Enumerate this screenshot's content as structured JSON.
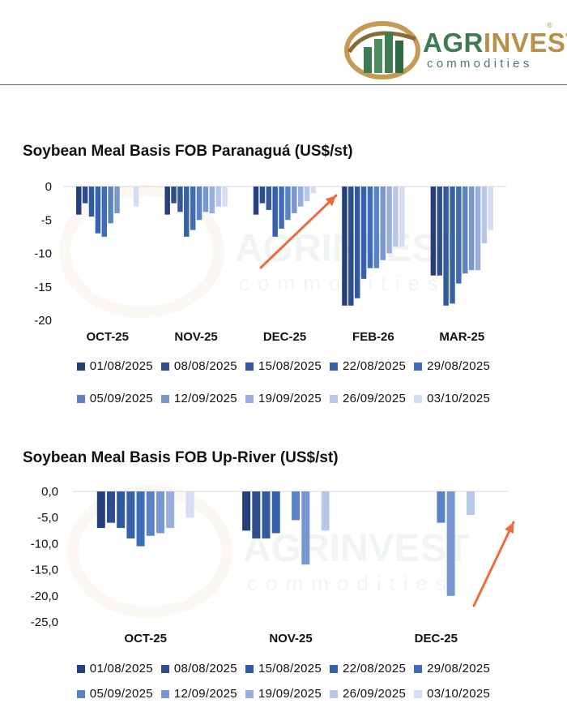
{
  "brand": {
    "name_part1": "AGR",
    "name_part2": "INVEST",
    "subtitle": "commodities",
    "registered": "®"
  },
  "colors": {
    "series": [
      "#243f7c",
      "#2c4e8e",
      "#32599f",
      "#3762ab",
      "#3f6cb8",
      "#5a83c5",
      "#7896d0",
      "#98aede",
      "#b8c7e9",
      "#d4ddf2"
    ],
    "arrow": "#ea6c3f",
    "grid": "#d9d9d9"
  },
  "series_names": [
    "01/08/2025",
    "08/08/2025",
    "15/08/2025",
    "22/08/2025",
    "29/08/2025",
    "05/09/2025",
    "12/09/2025",
    "19/09/2025",
    "26/09/2025",
    "03/10/2025"
  ],
  "chart_data": [
    {
      "type": "bar",
      "title": "Soybean Meal Basis FOB Paranaguá (US$/st)",
      "xlabel": "",
      "ylabel": "",
      "ylim": [
        -20,
        0
      ],
      "yticks": [
        "0",
        "-5",
        "-10",
        "-15",
        "-20"
      ],
      "categories": [
        "OCT-25",
        "NOV-25",
        "DEC-25",
        "FEB-26",
        "MAR-25"
      ],
      "grid": false,
      "legend": "bottom",
      "series": [
        {
          "name": "01/08/2025",
          "values": [
            -4.2,
            -4.2,
            -4.2,
            -17.8,
            -13.3
          ]
        },
        {
          "name": "08/08/2025",
          "values": [
            -2.5,
            -2.5,
            -2.5,
            -17.8,
            -13.3
          ]
        },
        {
          "name": "15/08/2025",
          "values": [
            -4.5,
            -3.8,
            -3.5,
            -16.7,
            -17.8
          ]
        },
        {
          "name": "22/08/2025",
          "values": [
            -7.0,
            -7.5,
            -7.5,
            -13.8,
            -17.5
          ]
        },
        {
          "name": "29/08/2025",
          "values": [
            -7.5,
            -6.5,
            -6.3,
            -12.2,
            -14.5
          ]
        },
        {
          "name": "05/09/2025",
          "values": [
            -5.5,
            -5.0,
            -5.0,
            -12.2,
            -13.0
          ]
        },
        {
          "name": "12/09/2025",
          "values": [
            -4.0,
            -3.8,
            -4.0,
            -11.0,
            -12.5
          ]
        },
        {
          "name": "19/09/2025",
          "values": [
            0,
            -4.0,
            -3.0,
            -10.0,
            -12.5
          ]
        },
        {
          "name": "26/09/2025",
          "values": [
            0,
            -3.0,
            -2.2,
            -9.0,
            -8.5
          ]
        },
        {
          "name": "03/10/2025",
          "values": [
            -3.0,
            -3.0,
            -1.0,
            -9.0,
            -6.5
          ]
        }
      ]
    },
    {
      "type": "bar",
      "title": "Soybean Meal Basis FOB Up-River (US$/st)",
      "xlabel": "",
      "ylabel": "",
      "ylim": [
        -25,
        0
      ],
      "yticks": [
        "0,0",
        "-5,0",
        "-10,0",
        "-15,0",
        "-20,0",
        "-25,0"
      ],
      "categories": [
        "OCT-25",
        "NOV-25",
        "DEC-25"
      ],
      "grid": false,
      "legend": "bottom",
      "series": [
        {
          "name": "01/08/2025",
          "values": [
            -7.0,
            -7.5,
            0
          ]
        },
        {
          "name": "08/08/2025",
          "values": [
            -6.0,
            -9.0,
            0
          ]
        },
        {
          "name": "15/08/2025",
          "values": [
            -7.0,
            -9.0,
            0
          ]
        },
        {
          "name": "22/08/2025",
          "values": [
            -9.0,
            -8.0,
            0
          ]
        },
        {
          "name": "29/08/2025",
          "values": [
            -10.5,
            0,
            0
          ]
        },
        {
          "name": "05/09/2025",
          "values": [
            -8.5,
            -5.5,
            -6.0
          ]
        },
        {
          "name": "12/09/2025",
          "values": [
            -8.0,
            -14.0,
            -20.0
          ]
        },
        {
          "name": "19/09/2025",
          "values": [
            -7.0,
            0,
            0
          ]
        },
        {
          "name": "26/09/2025",
          "values": [
            0,
            -7.5,
            -4.5
          ]
        },
        {
          "name": "03/10/2025",
          "values": [
            -5.0,
            0,
            0
          ]
        }
      ]
    }
  ]
}
